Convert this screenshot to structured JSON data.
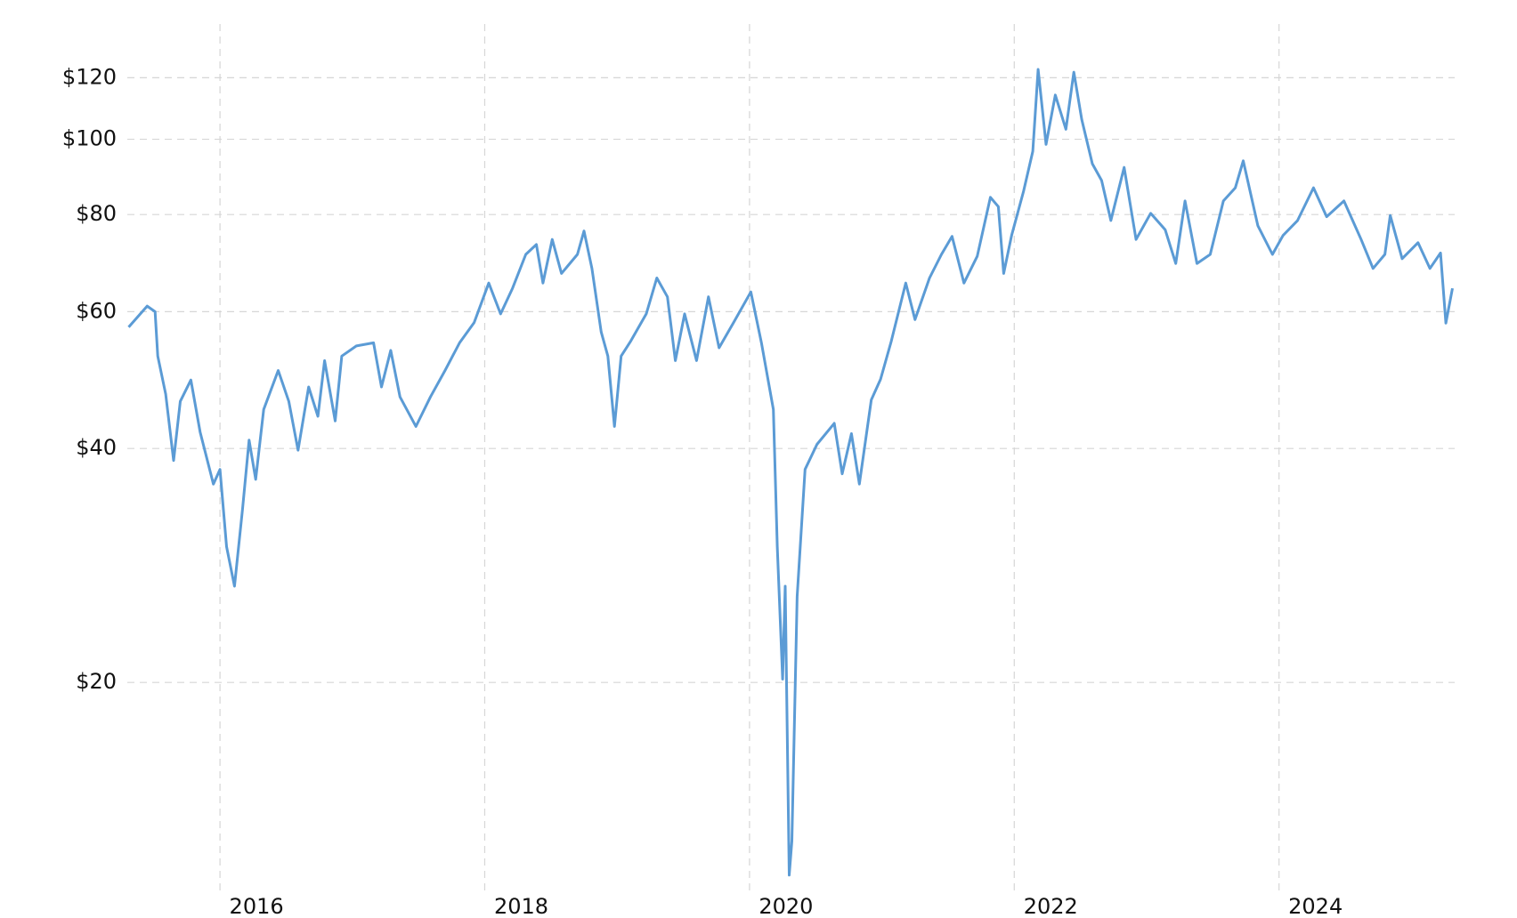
{
  "chart_data": {
    "type": "line",
    "color": "#5b9bd5",
    "log_y": true,
    "grid": true,
    "x": [
      2015.31,
      2015.45,
      2015.51,
      2015.53,
      2015.59,
      2015.65,
      2015.7,
      2015.78,
      2015.85,
      2015.95,
      2016.0,
      2016.05,
      2016.11,
      2016.17,
      2016.22,
      2016.27,
      2016.33,
      2016.44,
      2016.52,
      2016.59,
      2016.67,
      2016.74,
      2016.79,
      2016.87,
      2016.92,
      2017.03,
      2017.16,
      2017.22,
      2017.29,
      2017.36,
      2017.48,
      2017.59,
      2017.7,
      2017.81,
      2017.92,
      2018.03,
      2018.12,
      2018.21,
      2018.31,
      2018.39,
      2018.44,
      2018.51,
      2018.58,
      2018.7,
      2018.75,
      2018.81,
      2018.88,
      2018.93,
      2018.98,
      2019.03,
      2019.1,
      2019.22,
      2019.3,
      2019.38,
      2019.44,
      2019.51,
      2019.6,
      2019.69,
      2019.77,
      2019.88,
      2020.01,
      2020.09,
      2020.18,
      2020.21,
      2020.25,
      2020.27,
      2020.3,
      2020.32,
      2020.36,
      2020.42,
      2020.51,
      2020.64,
      2020.7,
      2020.77,
      2020.83,
      2020.92,
      2020.99,
      2021.07,
      2021.18,
      2021.25,
      2021.36,
      2021.45,
      2021.53,
      2021.62,
      2021.72,
      2021.82,
      2021.88,
      2021.92,
      2021.98,
      2022.07,
      2022.14,
      2022.18,
      2022.24,
      2022.31,
      2022.39,
      2022.45,
      2022.51,
      2022.59,
      2022.66,
      2022.73,
      2022.83,
      2022.92,
      2023.03,
      2023.14,
      2023.22,
      2023.29,
      2023.38,
      2023.48,
      2023.58,
      2023.67,
      2023.73,
      2023.84,
      2023.95,
      2024.03,
      2024.14,
      2024.26,
      2024.36,
      2024.49,
      2024.62,
      2024.71,
      2024.8,
      2024.84,
      2024.93,
      2025.05,
      2025.14,
      2025.22,
      2025.26,
      2025.31
    ],
    "values": [
      57.3,
      61,
      60,
      52.6,
      47,
      38.6,
      46,
      49,
      42,
      36,
      37.6,
      29.9,
      26.6,
      33.4,
      41,
      36.5,
      44.9,
      50.4,
      46,
      39.8,
      48,
      44,
      51.9,
      43.4,
      52.6,
      54.2,
      54.7,
      48,
      53.5,
      46.6,
      42.7,
      46.6,
      50.4,
      54.7,
      58.1,
      65.3,
      59.6,
      64.3,
      71.1,
      73.2,
      65.3,
      74.3,
      67.2,
      71.1,
      76.2,
      68.2,
      56.5,
      52.6,
      42.7,
      52.6,
      54.9,
      59.6,
      66.3,
      62.7,
      51.9,
      59.6,
      51.9,
      62.7,
      53.9,
      58.1,
      63.6,
      54.7,
      44.9,
      29.9,
      20.2,
      26.6,
      11.3,
      12.5,
      25.8,
      37.6,
      40.5,
      43.1,
      37.1,
      41.8,
      36,
      46.2,
      49.1,
      54.9,
      65.3,
      58.6,
      66.3,
      71.1,
      75,
      65.3,
      70.7,
      84.2,
      81.9,
      67.2,
      75.2,
      85.7,
      96.5,
      123,
      98.5,
      114,
      103,
      122,
      106,
      93,
      88.5,
      78.6,
      92,
      74.3,
      80.3,
      76.5,
      69.2,
      83.3,
      69.2,
      71.1,
      83.3,
      86.6,
      93.8,
      77.4,
      71.1,
      75.2,
      78.6,
      86.6,
      79.5,
      83.3,
      74.3,
      68.2,
      71.1,
      79.8,
      70.2,
      73.6,
      68.2,
      71.4,
      58,
      64.3
    ],
    "xlim": [
      2015.3,
      2025.3
    ],
    "xticks": [
      2016,
      2018,
      2020,
      2022,
      2024
    ],
    "ylim": [
      11,
      130
    ],
    "yticks": [
      {
        "value": 20,
        "label": "$20"
      },
      {
        "value": 40,
        "label": "$40"
      },
      {
        "value": 60,
        "label": "$60"
      },
      {
        "value": 80,
        "label": "$80"
      },
      {
        "value": 100,
        "label": "$100"
      },
      {
        "value": 120,
        "label": "$120"
      }
    ]
  }
}
